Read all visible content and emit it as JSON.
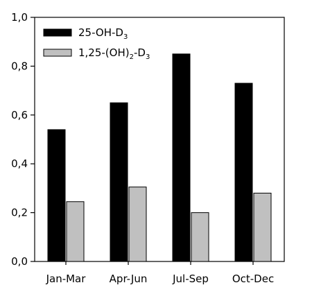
{
  "chart_data": {
    "type": "bar",
    "categories": [
      "Jan-Mar",
      "Apr-Jun",
      "Jul-Sep",
      "Oct-Dec"
    ],
    "series": [
      {
        "name": "25-OH-D3",
        "name_parts": {
          "base": "25-OH-D",
          "sub": "3"
        },
        "values": [
          0.54,
          0.65,
          0.85,
          0.73
        ],
        "color": "#000000"
      },
      {
        "name": "1,25-(OH)2-D3",
        "name_parts": {
          "a": "1,25-(OH)",
          "sub1": "2",
          "b": "-D",
          "sub2": "3"
        },
        "values": [
          0.245,
          0.305,
          0.2,
          0.28
        ],
        "color": "#c0c0c0"
      }
    ],
    "ylim": [
      0,
      1.0
    ],
    "yticks": [
      "0,0",
      "0,2",
      "0,4",
      "0,6",
      "0,8",
      "1,0"
    ],
    "title": "",
    "xlabel": "",
    "ylabel": "",
    "grid": false,
    "legend_position": "top-left"
  }
}
